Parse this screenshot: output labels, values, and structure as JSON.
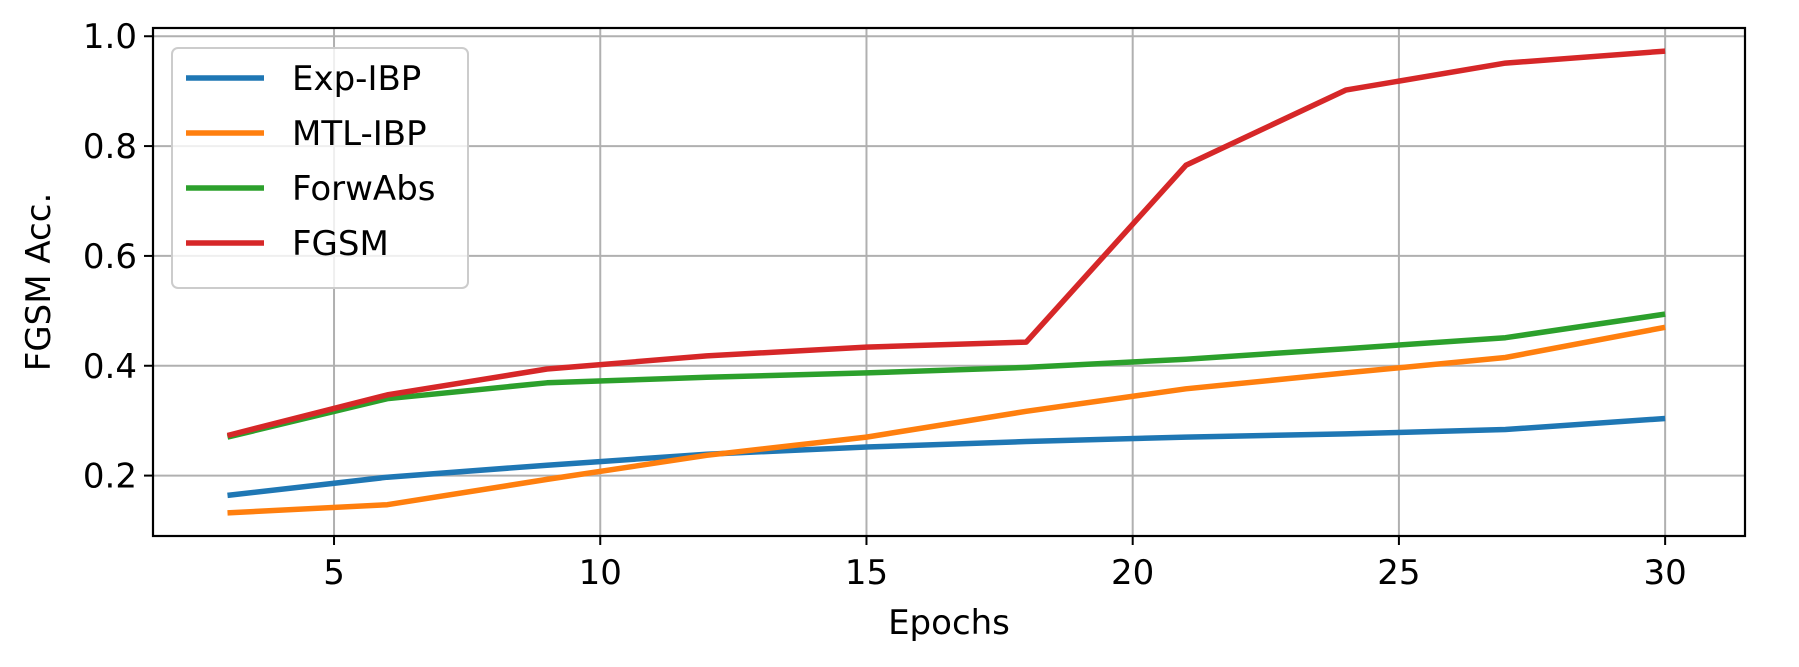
{
  "chart_data": {
    "type": "line",
    "xlabel": "Epochs",
    "ylabel": "FGSM Acc.",
    "xlim": [
      1.6,
      31.5
    ],
    "ylim": [
      0.09,
      1.015
    ],
    "xticks": [
      5,
      10,
      15,
      20,
      25,
      30
    ],
    "yticks": [
      0.2,
      0.4,
      0.6,
      0.8,
      1.0
    ],
    "xtick_labels": [
      "5",
      "10",
      "15",
      "20",
      "25",
      "30"
    ],
    "ytick_labels": [
      "0.2",
      "0.4",
      "0.6",
      "0.8",
      "1.0"
    ],
    "grid": true,
    "legend_position": "upper-left",
    "x": [
      3,
      6,
      9,
      12,
      15,
      18,
      21,
      24,
      27,
      30
    ],
    "series": [
      {
        "name": "Exp-IBP",
        "color": "#1f77b4",
        "values": [
          0.164,
          0.197,
          0.219,
          0.239,
          0.252,
          0.262,
          0.27,
          0.276,
          0.284,
          0.304
        ]
      },
      {
        "name": "MTL-IBP",
        "color": "#ff7f0e",
        "values": [
          0.132,
          0.147,
          0.193,
          0.237,
          0.27,
          0.317,
          0.358,
          0.387,
          0.415,
          0.47
        ]
      },
      {
        "name": "ForwAbs",
        "color": "#2ca02c",
        "values": [
          0.27,
          0.34,
          0.369,
          0.379,
          0.387,
          0.397,
          0.412,
          0.431,
          0.451,
          0.494
        ]
      },
      {
        "name": "FGSM",
        "color": "#d62728",
        "values": [
          0.273,
          0.347,
          0.394,
          0.418,
          0.434,
          0.443,
          0.765,
          0.902,
          0.951,
          0.973
        ]
      }
    ]
  }
}
